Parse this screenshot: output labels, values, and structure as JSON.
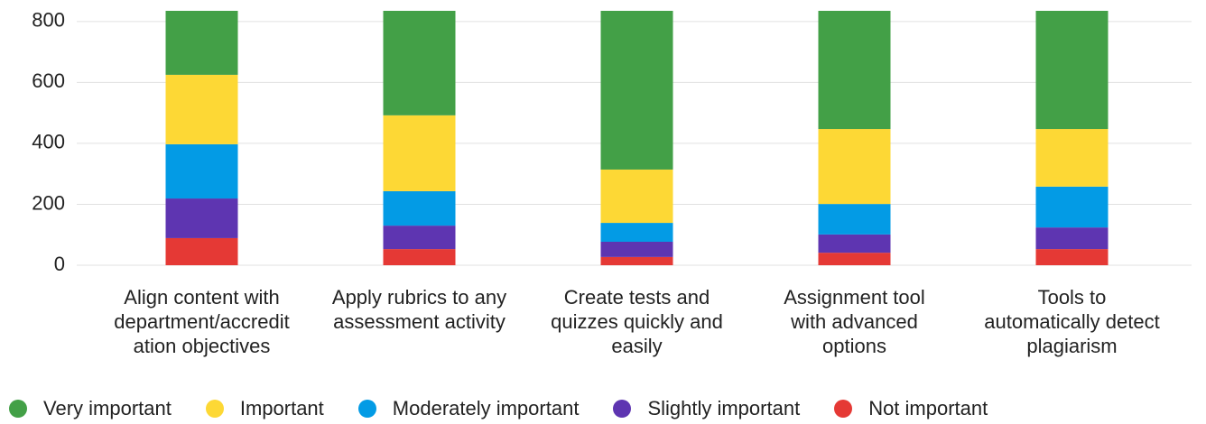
{
  "chart_data": {
    "type": "stacked_bar",
    "categories": [
      "Align content with department/accreditation objectives",
      "Apply rubrics to any assessment activity",
      "Create tests and quizzes quickly and easily",
      "Assignment tool with advanced options",
      "Tools to automatically detect plagiarism"
    ],
    "series": [
      {
        "name": "Very important",
        "color": "#43a047",
        "values": [
          210,
          343,
          521,
          388,
          388
        ]
      },
      {
        "name": "Important",
        "color": "#fdd835",
        "values": [
          228,
          249,
          175,
          246,
          189
        ]
      },
      {
        "name": "Moderately important",
        "color": "#039be5",
        "values": [
          178,
          113,
          62,
          100,
          134
        ]
      },
      {
        "name": "Slightly important",
        "color": "#5e35b1",
        "values": [
          130,
          77,
          50,
          60,
          71
        ]
      },
      {
        "name": "Not important",
        "color": "#e53935",
        "values": [
          89,
          53,
          27,
          41,
          53
        ]
      }
    ],
    "ylim": [
      0,
      835
    ],
    "yticks": [
      0,
      200,
      400,
      600,
      800
    ],
    "grid": true,
    "legend": "bottom"
  }
}
